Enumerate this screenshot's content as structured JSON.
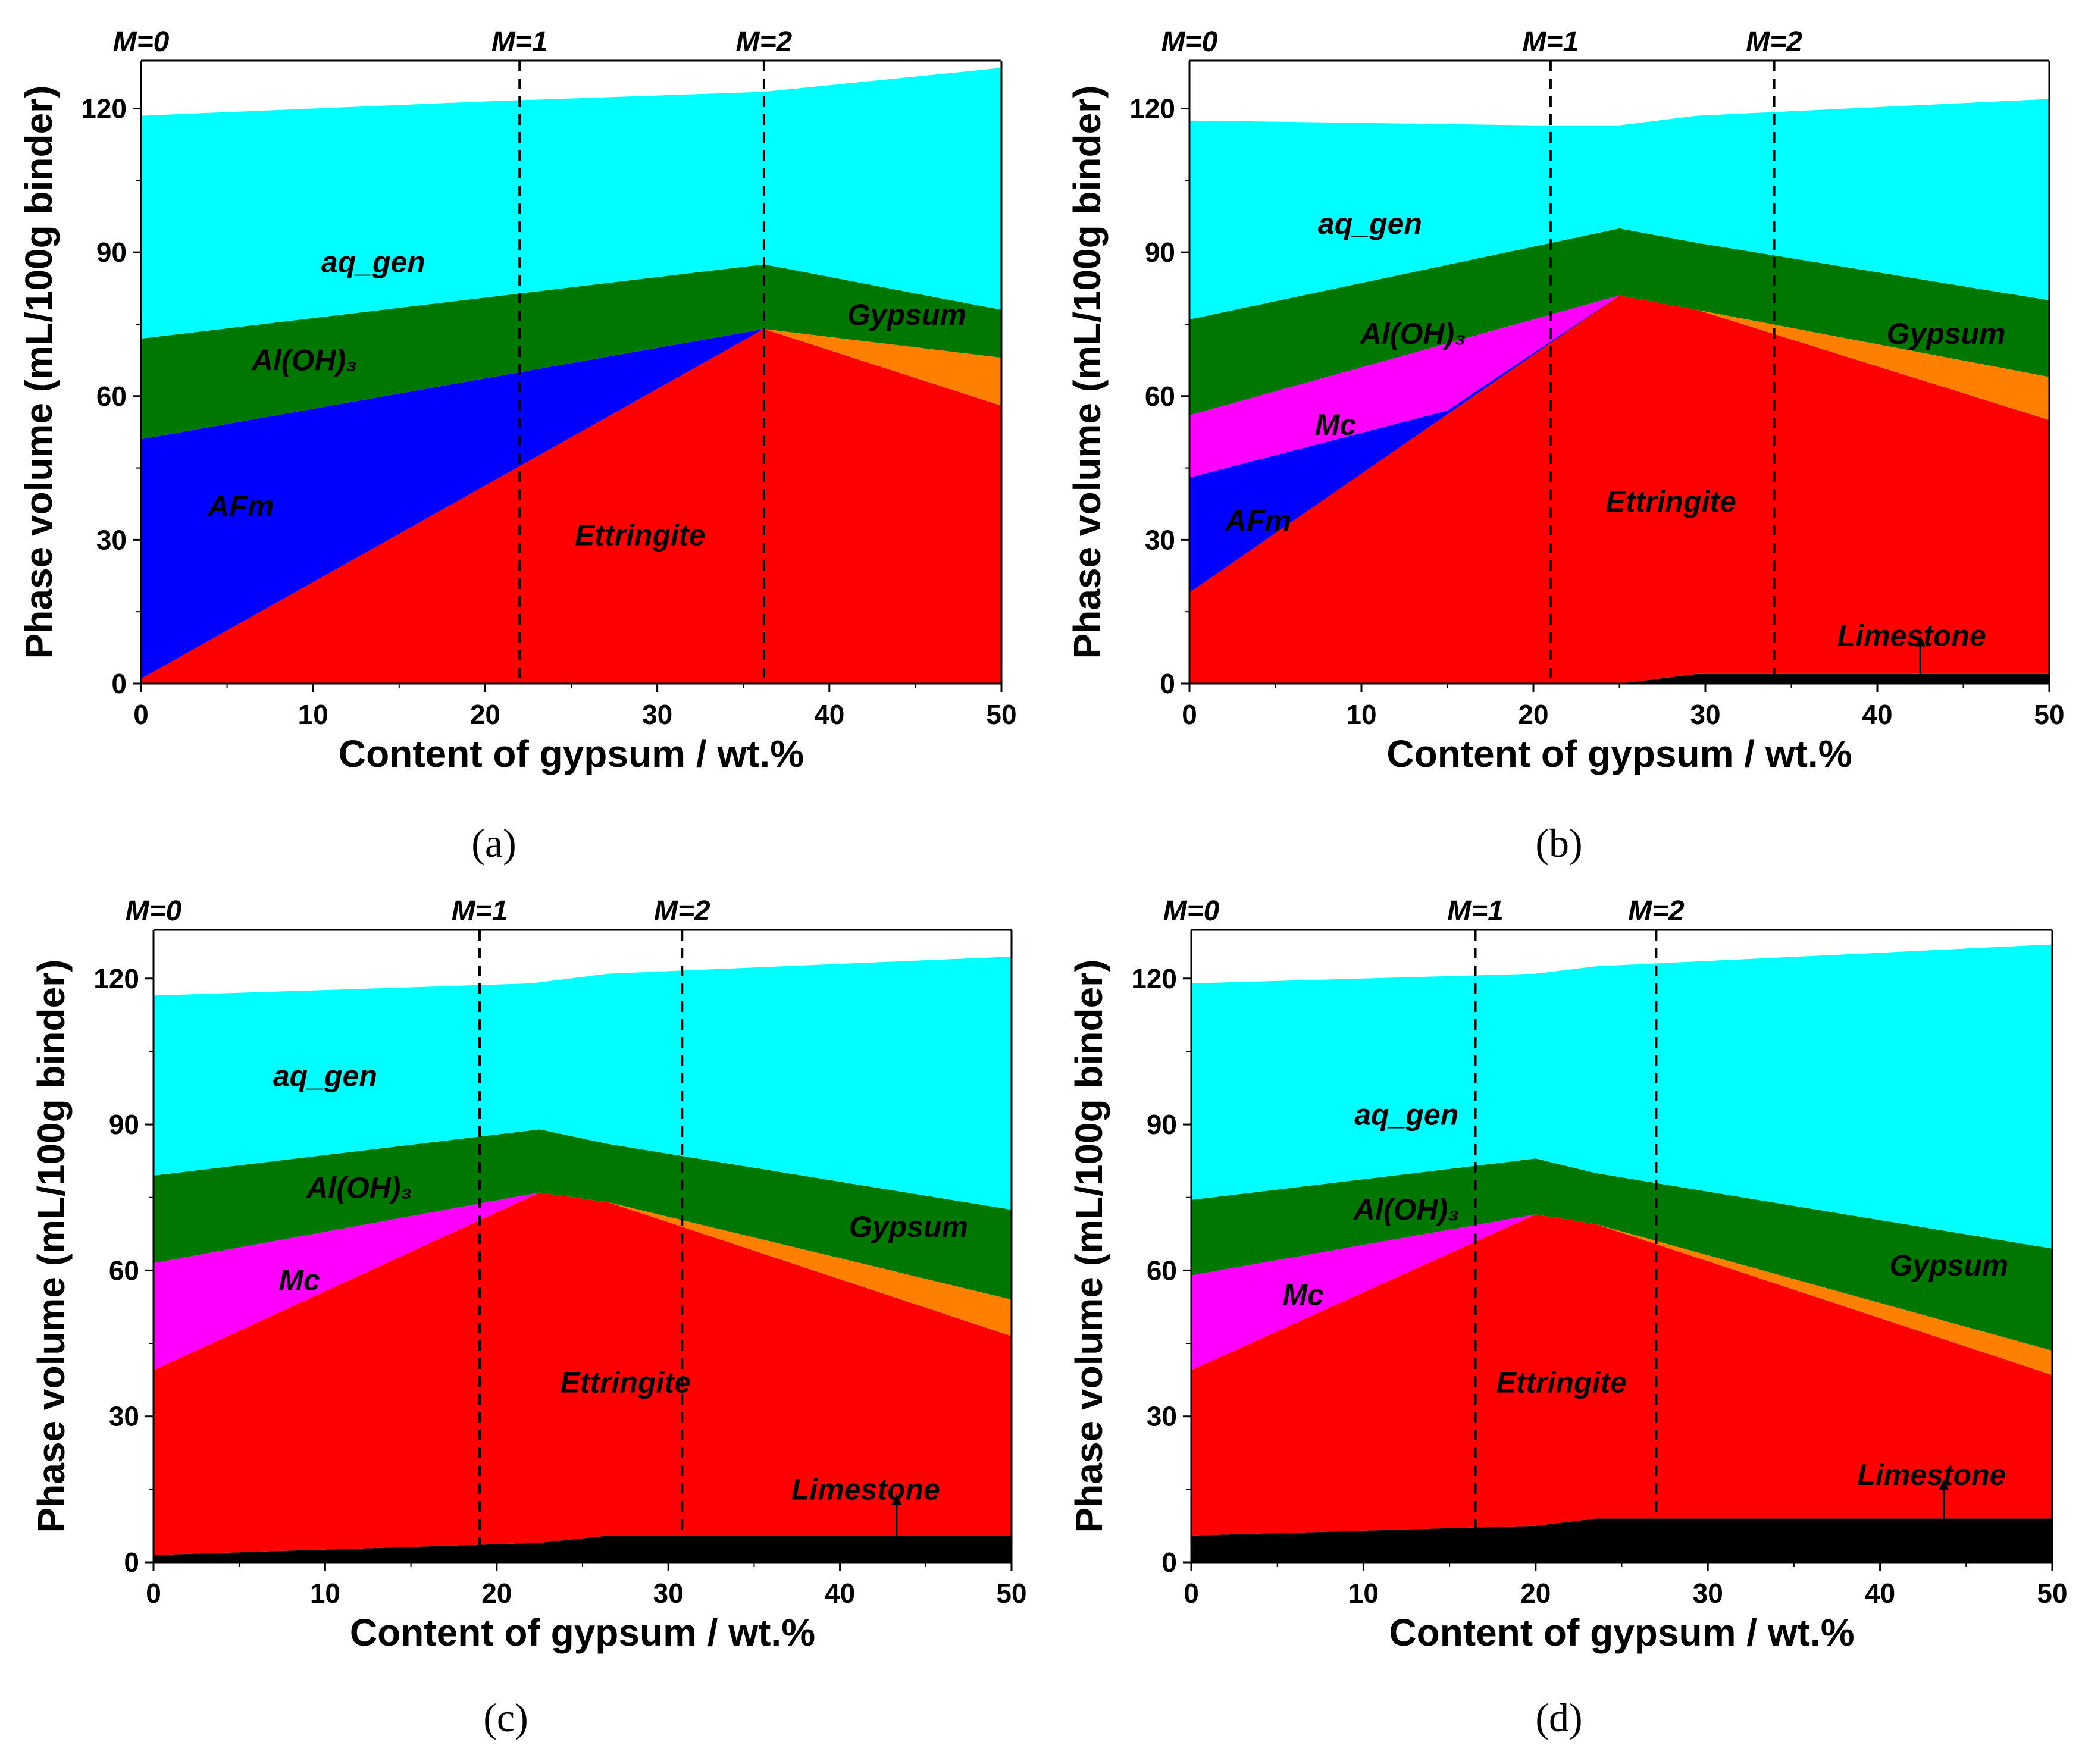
{
  "figure": {
    "captions": [
      "(a)",
      "(b)",
      "(c)",
      "(d)"
    ]
  },
  "chart_data": [
    {
      "panel": "a",
      "caption": "(a)",
      "type": "area",
      "stacking": "cumulative boundaries",
      "xlabel": "Content of gypsum / wt.%",
      "ylabel": "Phase volume (mL/100g binder)",
      "xlim": [
        0,
        50
      ],
      "ylim": [
        0,
        130
      ],
      "xticks": [
        0,
        10,
        20,
        30,
        40,
        50
      ],
      "yticks": [
        0,
        30,
        60,
        90,
        120
      ],
      "markers": [
        {
          "label": "M=0",
          "x": 0,
          "line": false
        },
        {
          "label": "M=1",
          "x": 22,
          "line": true
        },
        {
          "label": "M=2",
          "x": 36.2,
          "line": true
        }
      ],
      "layers": [
        {
          "name": "Ettringite",
          "color": "#ff0000",
          "points": [
            [
              0,
              1
            ],
            [
              36.2,
              74
            ],
            [
              50,
              58
            ]
          ]
        },
        {
          "name": "AFm",
          "color": "#0000ff",
          "points": [
            [
              0,
              51
            ],
            [
              36.2,
              74
            ],
            [
              50,
              58
            ]
          ]
        },
        {
          "name": "Gypsum",
          "color": "#ff8000",
          "points": [
            [
              0,
              51
            ],
            [
              36.2,
              74
            ],
            [
              50,
              68
            ]
          ]
        },
        {
          "name": "Al(OH)3",
          "color": "#007800",
          "points": [
            [
              0,
              72
            ],
            [
              36.2,
              87.5
            ],
            [
              50,
              78
            ]
          ]
        },
        {
          "name": "aq_gen",
          "color": "#00ffff",
          "points": [
            [
              0,
              118.5
            ],
            [
              20,
              121.5
            ],
            [
              36.2,
              123.5
            ],
            [
              50,
              128.5
            ]
          ]
        }
      ],
      "labels": [
        {
          "text": "aq_gen",
          "x": 13.5,
          "y": 88
        },
        {
          "text": "Al(OH)₃",
          "x": 9.5,
          "y": 67.5
        },
        {
          "text": "AFm",
          "x": 5.8,
          "y": 37
        },
        {
          "text": "Ettringite",
          "x": 29,
          "y": 31
        },
        {
          "text": "Gypsum",
          "x": 44.5,
          "y": 77
        }
      ]
    },
    {
      "panel": "b",
      "caption": "(b)",
      "type": "area",
      "stacking": "cumulative boundaries",
      "xlabel": "Content of gypsum / wt.%",
      "ylabel": "Phase volume (mL/100g binder)",
      "xlim": [
        0,
        50
      ],
      "ylim": [
        0,
        130
      ],
      "xticks": [
        0,
        10,
        20,
        30,
        40,
        50
      ],
      "yticks": [
        0,
        30,
        60,
        90,
        120
      ],
      "markers": [
        {
          "label": "M=0",
          "x": 0,
          "line": false
        },
        {
          "label": "M=1",
          "x": 21,
          "line": true
        },
        {
          "label": "M=2",
          "x": 34,
          "line": true
        }
      ],
      "layers": [
        {
          "name": "Limestone",
          "color": "#000000",
          "points": [
            [
              0,
              0
            ],
            [
              25,
              0
            ],
            [
              29.5,
              2
            ],
            [
              50,
              2
            ]
          ]
        },
        {
          "name": "Ettringite",
          "color": "#ff0000",
          "points": [
            [
              0,
              19
            ],
            [
              25,
              81
            ],
            [
              29.5,
              78
            ],
            [
              50,
              55
            ]
          ]
        },
        {
          "name": "AFm",
          "color": "#0000ff",
          "points": [
            [
              0,
              43
            ],
            [
              15,
              57
            ],
            [
              25,
              81
            ],
            [
              29.5,
              78
            ],
            [
              50,
              55
            ]
          ]
        },
        {
          "name": "Mc",
          "color": "#ff00ff",
          "points": [
            [
              0,
              56
            ],
            [
              25,
              81
            ],
            [
              29.5,
              78
            ],
            [
              50,
              55
            ]
          ]
        },
        {
          "name": "Gypsum",
          "color": "#ff8000",
          "points": [
            [
              0,
              56
            ],
            [
              25,
              81
            ],
            [
              29.5,
              78
            ],
            [
              50,
              64
            ]
          ]
        },
        {
          "name": "Al(OH)3",
          "color": "#007800",
          "points": [
            [
              0,
              76
            ],
            [
              25,
              95
            ],
            [
              29.5,
              92
            ],
            [
              50,
              80
            ]
          ]
        },
        {
          "name": "aq_gen",
          "color": "#00ffff",
          "points": [
            [
              0,
              117.5
            ],
            [
              20,
              116.5
            ],
            [
              25,
              116.5
            ],
            [
              29.5,
              118.5
            ],
            [
              50,
              122
            ]
          ]
        }
      ],
      "labels": [
        {
          "text": "aq_gen",
          "x": 10.5,
          "y": 96
        },
        {
          "text": "Al(OH)₃",
          "x": 13,
          "y": 73
        },
        {
          "text": "Mc",
          "x": 8.5,
          "y": 54
        },
        {
          "text": "AFm",
          "x": 4,
          "y": 34
        },
        {
          "text": "Ettringite",
          "x": 28,
          "y": 38
        },
        {
          "text": "Gypsum",
          "x": 44,
          "y": 73
        },
        {
          "text": "Limestone",
          "x": 42,
          "y": 10
        }
      ],
      "arrows": [
        {
          "x": 42.5,
          "from": 2,
          "to": 10
        }
      ]
    },
    {
      "panel": "c",
      "caption": "(c)",
      "type": "area",
      "stacking": "cumulative boundaries",
      "xlabel": "Content of gypsum / wt.%",
      "ylabel": "Phase volume (mL/100g binder)",
      "xlim": [
        0,
        50
      ],
      "ylim": [
        0,
        130
      ],
      "xticks": [
        0,
        10,
        20,
        30,
        40,
        50
      ],
      "yticks": [
        0,
        30,
        60,
        90,
        120
      ],
      "markers": [
        {
          "label": "M=0",
          "x": 0,
          "line": false
        },
        {
          "label": "M=1",
          "x": 19,
          "line": true
        },
        {
          "label": "M=2",
          "x": 30.8,
          "line": true
        }
      ],
      "layers": [
        {
          "name": "Limestone",
          "color": "#000000",
          "points": [
            [
              0,
              1.5
            ],
            [
              22.5,
              4
            ],
            [
              26.5,
              5.5
            ],
            [
              50,
              5.5
            ]
          ]
        },
        {
          "name": "Ettringite",
          "color": "#ff0000",
          "points": [
            [
              0,
              39.5
            ],
            [
              22.5,
              76
            ],
            [
              26.5,
              74
            ],
            [
              50,
              46.5
            ]
          ]
        },
        {
          "name": "Mc",
          "color": "#ff00ff",
          "points": [
            [
              0,
              61.5
            ],
            [
              22.5,
              76
            ],
            [
              26.5,
              74
            ],
            [
              50,
              46.5
            ]
          ]
        },
        {
          "name": "Gypsum",
          "color": "#ff8000",
          "points": [
            [
              0,
              61.5
            ],
            [
              22.5,
              76
            ],
            [
              26.5,
              74
            ],
            [
              50,
              54
            ]
          ]
        },
        {
          "name": "Al(OH)3",
          "color": "#007800",
          "points": [
            [
              0,
              79.5
            ],
            [
              22.5,
              89
            ],
            [
              26.5,
              86
            ],
            [
              50,
              72.5
            ]
          ]
        },
        {
          "name": "aq_gen",
          "color": "#00ffff",
          "points": [
            [
              0,
              116.5
            ],
            [
              22,
              119
            ],
            [
              26.5,
              121
            ],
            [
              50,
              124.5
            ]
          ]
        }
      ],
      "labels": [
        {
          "text": "aq_gen",
          "x": 10,
          "y": 100
        },
        {
          "text": "Al(OH)₃",
          "x": 12,
          "y": 77
        },
        {
          "text": "Mc",
          "x": 8.5,
          "y": 58
        },
        {
          "text": "Ettringite",
          "x": 27.5,
          "y": 37
        },
        {
          "text": "Gypsum",
          "x": 44,
          "y": 69
        },
        {
          "text": "Limestone",
          "x": 41.5,
          "y": 15
        }
      ],
      "arrows": [
        {
          "x": 43.3,
          "from": 5.5,
          "to": 14
        }
      ]
    },
    {
      "panel": "d",
      "caption": "(d)",
      "type": "area",
      "stacking": "cumulative boundaries",
      "xlabel": "Content of gypsum / wt.%",
      "ylabel": "Phase volume (mL/100g binder)",
      "xlim": [
        0,
        50
      ],
      "ylim": [
        0,
        130
      ],
      "xticks": [
        0,
        10,
        20,
        30,
        40,
        50
      ],
      "yticks": [
        0,
        30,
        60,
        90,
        120
      ],
      "markers": [
        {
          "label": "M=0",
          "x": 0,
          "line": false
        },
        {
          "label": "M=1",
          "x": 16.5,
          "line": true
        },
        {
          "label": "M=2",
          "x": 27,
          "line": true
        }
      ],
      "layers": [
        {
          "name": "Limestone",
          "color": "#000000",
          "points": [
            [
              0,
              5.5
            ],
            [
              20,
              7.5
            ],
            [
              23.5,
              9
            ],
            [
              50,
              9
            ]
          ]
        },
        {
          "name": "Ettringite",
          "color": "#ff0000",
          "points": [
            [
              0,
              39.5
            ],
            [
              20,
              71.5
            ],
            [
              23.5,
              69.5
            ],
            [
              50,
              38.5
            ]
          ]
        },
        {
          "name": "Mc",
          "color": "#ff00ff",
          "points": [
            [
              0,
              59
            ],
            [
              20,
              71.5
            ],
            [
              23.5,
              69.5
            ],
            [
              50,
              38.5
            ]
          ]
        },
        {
          "name": "Gypsum",
          "color": "#ff8000",
          "points": [
            [
              0,
              59
            ],
            [
              20,
              71.5
            ],
            [
              23.5,
              69.5
            ],
            [
              50,
              43.5
            ]
          ]
        },
        {
          "name": "Al(OH)3",
          "color": "#007800",
          "points": [
            [
              0,
              74.5
            ],
            [
              20,
              83
            ],
            [
              23.5,
              80
            ],
            [
              50,
              64.5
            ]
          ]
        },
        {
          "name": "aq_gen",
          "color": "#00ffff",
          "points": [
            [
              0,
              119
            ],
            [
              20,
              121
            ],
            [
              23.5,
              122.5
            ],
            [
              50,
              127
            ]
          ]
        }
      ],
      "labels": [
        {
          "text": "aq_gen",
          "x": 12.5,
          "y": 92
        },
        {
          "text": "Al(OH)₃",
          "x": 12.5,
          "y": 72.5
        },
        {
          "text": "Mc",
          "x": 6.5,
          "y": 55
        },
        {
          "text": "Ettringite",
          "x": 21.5,
          "y": 37
        },
        {
          "text": "Gypsum",
          "x": 44,
          "y": 61
        },
        {
          "text": "Limestone",
          "x": 43,
          "y": 18
        }
      ],
      "arrows": [
        {
          "x": 43.7,
          "from": 9,
          "to": 17
        }
      ]
    }
  ]
}
